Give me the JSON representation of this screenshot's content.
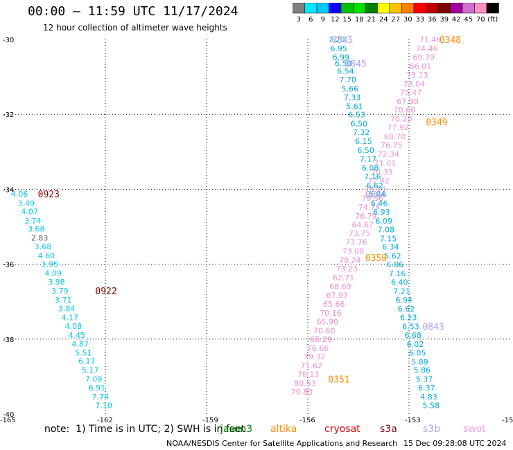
{
  "header": {
    "title": "00:00 — 11:59 UTC 11/17/2024",
    "subtitle": "12 hour collection of altimeter wave heights"
  },
  "colorbar": {
    "colors": [
      "#808080",
      "#00e8ff",
      "#00c8ff",
      "#0000ff",
      "#00c000",
      "#00e000",
      "#008000",
      "#ffff00",
      "#ffc000",
      "#ff8000",
      "#ff0000",
      "#c00000",
      "#800000",
      "#a000a0",
      "#d070d0",
      "#ff90c0",
      "#000000"
    ],
    "labels": [
      "3",
      "6",
      "9",
      "12",
      "15",
      "18",
      "21",
      "24",
      "27",
      "30",
      "33",
      "36",
      "39",
      "42",
      "45",
      "70",
      "(ft)"
    ]
  },
  "chart_data": {
    "type": "map",
    "axes": {
      "x_ticks": [
        "-165",
        "-162",
        "-159",
        "-156",
        "-153",
        "-15"
      ],
      "y_ticks": [
        "-30",
        "-32",
        "-34",
        "-36",
        "-38",
        "-40"
      ],
      "xlim": [
        -165,
        -150
      ],
      "ylim": [
        -40,
        -30
      ],
      "grid": true
    },
    "passes": [
      {
        "satellite": "jason3",
        "time_label": "0923",
        "time_label_lat": -34.12,
        "time_label_lon": -164.0,
        "time_color": "#800000",
        "points": [
          {
            "lon": -164.8,
            "lat": -34.12,
            "swh": "4.06",
            "color": "#00c8e8"
          },
          {
            "lon": -164.6,
            "lat": -34.37,
            "swh": "3.49",
            "color": "#00c8e8"
          },
          {
            "lon": -164.5,
            "lat": -34.59,
            "swh": "4.07",
            "color": "#00c8e8"
          },
          {
            "lon": -164.4,
            "lat": -34.84,
            "swh": "3.74",
            "color": "#00c8e8"
          },
          {
            "lon": -164.3,
            "lat": -35.06,
            "swh": "3.68",
            "color": "#00c8e8"
          },
          {
            "lon": -164.2,
            "lat": -35.3,
            "swh": "2.83",
            "color": "#606060"
          },
          {
            "lon": -164.1,
            "lat": -35.53,
            "swh": "3.68",
            "color": "#00c8e8"
          },
          {
            "lon": -164.0,
            "lat": -35.77,
            "swh": "4.60",
            "color": "#00c8e8"
          },
          {
            "lon": -163.9,
            "lat": -36.0,
            "swh": "3.95",
            "color": "#00c8e8"
          },
          {
            "lon": -163.8,
            "lat": -36.24,
            "swh": "4.09",
            "color": "#00c8e8"
          },
          {
            "lon": -163.7,
            "lat": -36.47,
            "swh": "3.98",
            "color": "#00c8e8"
          },
          {
            "lon": -163.6,
            "lat": -36.71,
            "swh": "3.79",
            "color": "#00c8e8"
          },
          {
            "lon": -163.5,
            "lat": -36.95,
            "swh": "3.71",
            "color": "#00c8e8"
          },
          {
            "lon": -163.4,
            "lat": -37.18,
            "swh": "3.84",
            "color": "#00c8e8"
          },
          {
            "lon": -163.3,
            "lat": -37.42,
            "swh": "4.17",
            "color": "#00c8e8"
          },
          {
            "lon": -163.2,
            "lat": -37.65,
            "swh": "4.08",
            "color": "#00c8e8"
          },
          {
            "lon": -163.1,
            "lat": -37.89,
            "swh": "4.45",
            "color": "#00c8e8"
          },
          {
            "lon": -163.0,
            "lat": -38.12,
            "swh": "4.87",
            "color": "#00c8e8"
          },
          {
            "lon": -162.9,
            "lat": -38.36,
            "swh": "5.51",
            "color": "#00c8e8"
          },
          {
            "lon": -162.8,
            "lat": -38.59,
            "swh": "6.17",
            "color": "#00c8e8"
          },
          {
            "lon": -162.7,
            "lat": -38.83,
            "swh": "5.17",
            "color": "#00c8e8"
          },
          {
            "lon": -162.6,
            "lat": -39.07,
            "swh": "7.09",
            "color": "#00c8e8"
          },
          {
            "lon": -162.5,
            "lat": -39.3,
            "swh": "6.91",
            "color": "#00c8e8"
          },
          {
            "lon": -162.4,
            "lat": -39.54,
            "swh": "7.74",
            "color": "#00c8e8"
          },
          {
            "lon": -162.3,
            "lat": -39.77,
            "swh": "7.10",
            "color": "#00c8e8"
          }
        ],
        "extra_time_label": {
          "text": "0922",
          "lat": -36.71,
          "lon": -162.3,
          "color": "#800000"
        }
      }
    ],
    "legend": [
      {
        "name": "jason3",
        "color": "#008000"
      },
      {
        "name": "altika",
        "color": "#ff8c00"
      },
      {
        "name": "cryosat",
        "color": "#e00000"
      },
      {
        "name": "s3a",
        "color": "#800000"
      },
      {
        "name": "s3b",
        "color": "#b0a0f0"
      },
      {
        "name": "swot",
        "color": "#f0a0e0"
      }
    ]
  },
  "tracks": {
    "blue_track": {
      "color": "#00a8e0",
      "points": [
        [
          "7.20",
          -30.0
        ],
        [
          "6.95",
          -30.24
        ],
        [
          "6.99",
          -30.47
        ],
        [
          "6.50",
          -30.64
        ],
        [
          "6.54",
          -30.84
        ],
        [
          "7.70",
          -31.07
        ],
        [
          "5.66",
          -31.31
        ],
        [
          "7.33",
          -31.54
        ],
        [
          "5.61",
          -31.78
        ],
        [
          "6.53",
          -32.01
        ],
        [
          "6.50",
          -32.25
        ],
        [
          "7.32",
          -32.48
        ],
        [
          "6.15",
          -32.72
        ],
        [
          "6.50",
          -32.96
        ],
        [
          "7.17",
          -33.19
        ],
        [
          "6.08",
          -33.43
        ],
        [
          "7.16",
          -33.66
        ],
        [
          "6.62",
          -33.9
        ],
        [
          "5.94",
          -34.13
        ],
        [
          "6.46",
          -34.37
        ],
        [
          "6.93",
          -34.6
        ],
        [
          "6.09",
          -34.84
        ],
        [
          "7.08",
          -35.07
        ],
        [
          "7.15",
          -35.31
        ],
        [
          "6.34",
          -35.54
        ],
        [
          "5.62",
          -35.78
        ],
        [
          "6.86",
          -36.01
        ],
        [
          "7.16",
          -36.25
        ],
        [
          "6.40",
          -36.48
        ],
        [
          "7.21",
          -36.72
        ],
        [
          "6.94",
          -36.95
        ],
        [
          "6.62",
          -37.19
        ],
        [
          "6.23",
          -37.42
        ],
        [
          "6.53",
          -37.66
        ],
        [
          "6.68",
          -37.89
        ],
        [
          "6.02",
          -38.13
        ],
        [
          "6.05",
          -38.36
        ],
        [
          "5.89",
          -38.6
        ],
        [
          "5.86",
          -38.83
        ],
        [
          "5.37",
          -39.07
        ],
        [
          "6.37",
          -39.3
        ],
        [
          "4.83",
          -39.54
        ],
        [
          "5.58",
          -39.77
        ]
      ],
      "lon_start": -155.4,
      "lon_end": -152.6
    },
    "pink_track": {
      "color": "#e890d0",
      "points": [
        [
          "71.46",
          -30.0
        ],
        [
          "74.46",
          -30.24
        ],
        [
          "69.79",
          -30.47
        ],
        [
          "66.01",
          -30.71
        ],
        [
          "73.13",
          -30.94
        ],
        [
          "73.04",
          -31.18
        ],
        [
          "75.47",
          -31.41
        ],
        [
          "67.90",
          -31.65
        ],
        [
          "70.68",
          -31.88
        ],
        [
          "70.20",
          -32.12
        ],
        [
          "77.92",
          -32.35
        ],
        [
          "68.70",
          -32.59
        ],
        [
          "76.75",
          -32.82
        ],
        [
          "72.34",
          -33.06
        ],
        [
          "71.01",
          -33.3
        ],
        [
          "70.33",
          -33.53
        ],
        [
          "72.42",
          -33.77
        ],
        [
          "75.22",
          -34.0
        ],
        [
          "79.56",
          -34.24
        ],
        [
          "74.74",
          -34.47
        ],
        [
          "76.79",
          -34.71
        ],
        [
          "64.67",
          -34.94
        ],
        [
          "73.75",
          -35.18
        ],
        [
          "73.76",
          -35.41
        ],
        [
          "73.00",
          -35.65
        ],
        [
          "78.24",
          -35.89
        ],
        [
          "73.23",
          -36.12
        ],
        [
          "62.71",
          -36.36
        ],
        [
          "68.69",
          -36.59
        ],
        [
          "67.97",
          -36.83
        ],
        [
          "65.66",
          -37.06
        ],
        [
          "70.16",
          -37.3
        ],
        [
          "65.90",
          -37.53
        ],
        [
          "70.60",
          -37.77
        ],
        [
          "68.29",
          -38.0
        ],
        [
          "76.66",
          -38.24
        ],
        [
          "79.32",
          -38.47
        ],
        [
          "71.62",
          -38.71
        ],
        [
          "78.13",
          -38.94
        ],
        [
          "80.53",
          -39.18
        ],
        [
          "70.80",
          -39.41
        ]
      ],
      "lon_start": -152.7,
      "lon_end": -156.5
    },
    "labels": [
      {
        "text": "0845",
        "lat": -30.0,
        "lon": -155.3,
        "color": "#b0a0f0"
      },
      {
        "text": "0845",
        "lat": -30.64,
        "lon": -154.9,
        "color": "#b0a0f0"
      },
      {
        "text": "0348",
        "lat": -30.0,
        "lon": -152.1,
        "color": "#ff8c00"
      },
      {
        "text": "0349",
        "lat": -32.2,
        "lon": -152.5,
        "color": "#ff8c00"
      },
      {
        "text": "0844",
        "lat": -34.13,
        "lon": -154.3,
        "color": "#b0a0f0"
      },
      {
        "text": "0350",
        "lat": -35.82,
        "lon": -154.3,
        "color": "#ff8c00"
      },
      {
        "text": "0843",
        "lat": -37.66,
        "lon": -152.6,
        "color": "#b0a0f0"
      },
      {
        "text": "0351",
        "lat": -39.07,
        "lon": -155.4,
        "color": "#ff8c00"
      }
    ]
  },
  "footer": {
    "note": "note:  1) Time is in UTC; 2) SWH is in feet",
    "credit": "NOAA/NESDIS Center for Satellite Applications and Research",
    "timestamp": "15 Dec 09:28:08 UTC 2024"
  }
}
